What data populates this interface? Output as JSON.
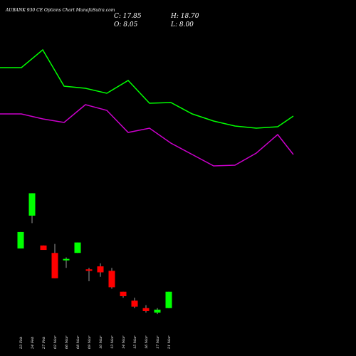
{
  "header": {
    "title": "AUBANK 930  CE Options  Chart MunafaSutra.com",
    "close": "C: 17.85",
    "open": "O: 8.05",
    "high": "H: 18.70",
    "low": "L: 8.00"
  },
  "chart_data": {
    "type": "candlestick",
    "title": "AUBANK 930  CE Options  Chart MunafaSutra.com",
    "price_range": [
      7.5,
      60
    ],
    "categories": [
      "23 Feb",
      "24 Feb",
      "27 Feb",
      "02 Mar",
      "06 Mar",
      "08 Mar",
      "09 Mar",
      "10 Mar",
      "13 Mar",
      "14 Mar",
      "15 Mar",
      "16 Mar",
      "17 Mar",
      "21 Mar"
    ],
    "ohlc": [
      {
        "date": "23 Feb",
        "open": 34.0,
        "high": 39.5,
        "low": 34.0,
        "close": 39.5
      },
      {
        "date": "24 Feb",
        "open": 45.0,
        "high": 52.5,
        "low": 42.5,
        "close": 52.5
      },
      {
        "date": "27 Feb",
        "open": 35.0,
        "high": 35.0,
        "low": 33.5,
        "close": 33.5
      },
      {
        "date": "02 Mar",
        "open": 32.5,
        "high": 35.5,
        "low": 24.0,
        "close": 24.0
      },
      {
        "date": "06 Mar",
        "open": 30.0,
        "high": 31.0,
        "low": 27.5,
        "close": 30.5
      },
      {
        "date": "08 Mar",
        "open": 32.5,
        "high": 36.0,
        "low": 32.5,
        "close": 36.0
      },
      {
        "date": "09 Mar",
        "open": 27.0,
        "high": 27.5,
        "low": 23.0,
        "close": 26.5
      },
      {
        "date": "10 Mar",
        "open": 28.0,
        "high": 29.0,
        "low": 24.5,
        "close": 26.0
      },
      {
        "date": "13 Mar",
        "open": 26.5,
        "high": 27.5,
        "low": 20.5,
        "close": 21.0
      },
      {
        "date": "14 Mar",
        "open": 19.5,
        "high": 19.5,
        "low": 17.5,
        "close": 18.0
      },
      {
        "date": "15 Mar",
        "open": 16.5,
        "high": 17.5,
        "low": 14.0,
        "close": 14.5
      },
      {
        "date": "16 Mar",
        "open": 14.0,
        "high": 15.0,
        "low": 12.5,
        "close": 13.0
      },
      {
        "date": "17 Mar",
        "open": 12.5,
        "high": 14.0,
        "low": 12.0,
        "close": 13.5
      },
      {
        "date": "21 Mar",
        "open": 14.0,
        "high": 19.5,
        "low": 14.0,
        "close": 19.5
      }
    ],
    "series": [
      {
        "color": "#00ff00",
        "values": [
          null,
          null,
          null,
          null,
          null,
          null,
          null,
          null,
          null,
          null,
          null,
          null,
          null,
          null
        ]
      },
      {
        "color": "#cc00cc",
        "values": [
          null,
          null,
          null,
          null,
          null,
          null,
          null,
          null,
          null,
          null,
          null,
          null,
          null,
          null
        ]
      }
    ],
    "line_x_positions": [
      0,
      30,
      60,
      90,
      120,
      150,
      180,
      210,
      240,
      270,
      300,
      330,
      360,
      390,
      412
    ],
    "green_line": [
      95,
      95,
      70,
      121,
      124,
      131,
      113,
      145,
      144,
      160,
      170,
      177,
      180,
      178,
      163
    ],
    "magenta_line": [
      160,
      160,
      167,
      172,
      147,
      155,
      186,
      180,
      201,
      217,
      233,
      232,
      215,
      189,
      217
    ],
    "colors": {
      "up": "#00ff00",
      "down": "#ff0000",
      "wick": "#ffffff",
      "background": "#000000",
      "text": "#ffffff"
    }
  }
}
